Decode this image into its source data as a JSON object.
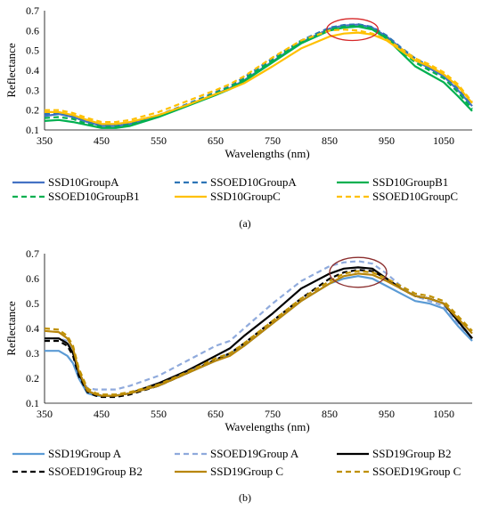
{
  "chart_data": [
    {
      "type": "line",
      "panel_label": "(a)",
      "xlabel": "Wavelengths (nm)",
      "ylabel": "Reflectance",
      "xlim": [
        350,
        1100
      ],
      "ylim": [
        0.1,
        0.7
      ],
      "xticks": [
        350,
        450,
        550,
        650,
        750,
        850,
        950,
        1050
      ],
      "yticks": [
        0.1,
        0.2,
        0.3,
        0.4,
        0.5,
        0.6,
        0.7
      ],
      "grid": false,
      "legend_position": "bottom",
      "annotation": {
        "shape": "ellipse",
        "color": "#d62728",
        "center": [
          890,
          0.605
        ],
        "rx_data": 45,
        "ry_data": 0.055
      },
      "series": [
        {
          "name": "SSD10GroupA",
          "color": "#4472c4",
          "dash": "solid",
          "x": [
            350,
            375,
            400,
            425,
            450,
            475,
            500,
            550,
            600,
            650,
            675,
            700,
            750,
            800,
            850,
            875,
            900,
            925,
            950,
            975,
            1000,
            1025,
            1050,
            1075,
            1100
          ],
          "y": [
            0.17,
            0.18,
            0.165,
            0.14,
            0.12,
            0.12,
            0.13,
            0.17,
            0.225,
            0.28,
            0.31,
            0.35,
            0.445,
            0.54,
            0.61,
            0.625,
            0.63,
            0.615,
            0.57,
            0.51,
            0.45,
            0.41,
            0.37,
            0.3,
            0.22
          ]
        },
        {
          "name": "SSOED10GroupA",
          "color": "#2e75b6",
          "dash": "dashed",
          "x": [
            350,
            375,
            400,
            425,
            450,
            475,
            500,
            550,
            600,
            650,
            675,
            700,
            750,
            800,
            850,
            875,
            900,
            925,
            950,
            975,
            1000,
            1025,
            1050,
            1075,
            1100
          ],
          "y": [
            0.18,
            0.185,
            0.17,
            0.145,
            0.125,
            0.125,
            0.135,
            0.175,
            0.23,
            0.29,
            0.32,
            0.365,
            0.46,
            0.55,
            0.615,
            0.628,
            0.632,
            0.618,
            0.575,
            0.515,
            0.46,
            0.42,
            0.38,
            0.31,
            0.225
          ]
        },
        {
          "name": "SSD10GroupB1",
          "color": "#00b050",
          "dash": "solid",
          "x": [
            350,
            375,
            400,
            425,
            450,
            475,
            500,
            550,
            600,
            650,
            675,
            700,
            750,
            800,
            850,
            875,
            900,
            925,
            950,
            975,
            1000,
            1025,
            1050,
            1075,
            1100
          ],
          "y": [
            0.145,
            0.15,
            0.14,
            0.125,
            0.11,
            0.11,
            0.12,
            0.165,
            0.22,
            0.275,
            0.305,
            0.345,
            0.44,
            0.535,
            0.6,
            0.615,
            0.62,
            0.605,
            0.56,
            0.49,
            0.42,
            0.38,
            0.34,
            0.27,
            0.195
          ]
        },
        {
          "name": "SSOED10GroupB1",
          "color": "#00b050",
          "dash": "dashed",
          "x": [
            350,
            375,
            400,
            425,
            450,
            475,
            500,
            550,
            600,
            650,
            675,
            700,
            750,
            800,
            850,
            875,
            900,
            925,
            950,
            975,
            1000,
            1025,
            1050,
            1075,
            1100
          ],
          "y": [
            0.16,
            0.165,
            0.155,
            0.13,
            0.115,
            0.115,
            0.125,
            0.17,
            0.225,
            0.285,
            0.315,
            0.355,
            0.45,
            0.545,
            0.605,
            0.62,
            0.625,
            0.61,
            0.565,
            0.5,
            0.44,
            0.4,
            0.36,
            0.29,
            0.205
          ]
        },
        {
          "name": "SSD10GroupC",
          "color": "#ffc000",
          "dash": "solid",
          "x": [
            350,
            375,
            400,
            425,
            450,
            475,
            500,
            550,
            600,
            650,
            675,
            700,
            750,
            800,
            850,
            875,
            900,
            925,
            950,
            975,
            1000,
            1025,
            1050,
            1075,
            1100
          ],
          "y": [
            0.19,
            0.19,
            0.175,
            0.15,
            0.13,
            0.13,
            0.14,
            0.175,
            0.225,
            0.28,
            0.305,
            0.335,
            0.42,
            0.51,
            0.57,
            0.585,
            0.59,
            0.58,
            0.55,
            0.5,
            0.45,
            0.42,
            0.38,
            0.32,
            0.235
          ]
        },
        {
          "name": "SSOED10GroupC",
          "color": "#ffc000",
          "dash": "dashed",
          "x": [
            350,
            375,
            400,
            425,
            450,
            475,
            500,
            550,
            600,
            650,
            675,
            700,
            750,
            800,
            850,
            875,
            900,
            925,
            950,
            975,
            1000,
            1025,
            1050,
            1075,
            1100
          ],
          "y": [
            0.2,
            0.2,
            0.185,
            0.16,
            0.14,
            0.14,
            0.15,
            0.19,
            0.245,
            0.3,
            0.33,
            0.37,
            0.465,
            0.55,
            0.6,
            0.605,
            0.6,
            0.585,
            0.555,
            0.51,
            0.46,
            0.43,
            0.39,
            0.33,
            0.24
          ]
        }
      ]
    },
    {
      "type": "line",
      "panel_label": "(b)",
      "xlabel": "Wavelengths (nm)",
      "ylabel": "Reflectance",
      "xlim": [
        350,
        1100
      ],
      "ylim": [
        0.1,
        0.7
      ],
      "xticks": [
        350,
        450,
        550,
        650,
        750,
        850,
        950,
        1050
      ],
      "yticks": [
        0.1,
        0.2,
        0.3,
        0.4,
        0.5,
        0.6,
        0.7
      ],
      "grid": false,
      "legend_position": "bottom",
      "annotation": {
        "shape": "ellipse",
        "color": "#8b2e2e",
        "center": [
          900,
          0.625
        ],
        "rx_data": 50,
        "ry_data": 0.06
      },
      "series": [
        {
          "name": "SSD19Group A",
          "color": "#5b9bd5",
          "dash": "solid",
          "x": [
            350,
            375,
            390,
            400,
            410,
            425,
            440,
            450,
            475,
            500,
            550,
            600,
            650,
            675,
            700,
            750,
            800,
            850,
            875,
            900,
            925,
            950,
            975,
            1000,
            1025,
            1050,
            1075,
            1100
          ],
          "y": [
            0.31,
            0.31,
            0.29,
            0.26,
            0.2,
            0.14,
            0.13,
            0.13,
            0.13,
            0.14,
            0.17,
            0.22,
            0.27,
            0.3,
            0.33,
            0.42,
            0.51,
            0.58,
            0.6,
            0.61,
            0.6,
            0.57,
            0.54,
            0.51,
            0.5,
            0.48,
            0.41,
            0.35
          ]
        },
        {
          "name": "SSOED19Group A",
          "color": "#8faadc",
          "dash": "dashed",
          "x": [
            350,
            375,
            390,
            400,
            410,
            425,
            440,
            450,
            475,
            500,
            550,
            600,
            650,
            675,
            700,
            750,
            800,
            850,
            875,
            900,
            925,
            950,
            975,
            1000,
            1025,
            1050,
            1075,
            1100
          ],
          "y": [
            0.36,
            0.36,
            0.35,
            0.3,
            0.22,
            0.16,
            0.155,
            0.155,
            0.155,
            0.17,
            0.21,
            0.27,
            0.33,
            0.35,
            0.4,
            0.5,
            0.59,
            0.65,
            0.665,
            0.67,
            0.66,
            0.62,
            0.57,
            0.53,
            0.51,
            0.49,
            0.42,
            0.36
          ]
        },
        {
          "name": "SSD19Group B2",
          "color": "#000000",
          "dash": "solid",
          "x": [
            350,
            375,
            390,
            400,
            410,
            425,
            440,
            450,
            475,
            500,
            550,
            600,
            650,
            675,
            700,
            750,
            800,
            850,
            875,
            900,
            925,
            950,
            975,
            1000,
            1025,
            1050,
            1075,
            1100
          ],
          "y": [
            0.36,
            0.36,
            0.34,
            0.3,
            0.22,
            0.15,
            0.135,
            0.13,
            0.13,
            0.14,
            0.18,
            0.23,
            0.29,
            0.32,
            0.37,
            0.46,
            0.56,
            0.62,
            0.64,
            0.645,
            0.64,
            0.6,
            0.56,
            0.53,
            0.52,
            0.5,
            0.43,
            0.36
          ]
        },
        {
          "name": "SSOED19Group B2",
          "color": "#000000",
          "dash": "dashed",
          "x": [
            350,
            375,
            390,
            400,
            410,
            425,
            440,
            450,
            475,
            500,
            550,
            600,
            650,
            675,
            700,
            750,
            800,
            850,
            875,
            900,
            925,
            950,
            975,
            1000,
            1025,
            1050,
            1075,
            1100
          ],
          "y": [
            0.35,
            0.35,
            0.33,
            0.29,
            0.21,
            0.145,
            0.13,
            0.125,
            0.125,
            0.135,
            0.17,
            0.22,
            0.275,
            0.3,
            0.34,
            0.43,
            0.52,
            0.6,
            0.625,
            0.635,
            0.63,
            0.6,
            0.56,
            0.53,
            0.52,
            0.5,
            0.43,
            0.36
          ]
        },
        {
          "name": "SSD19Group C",
          "color": "#b8860b",
          "dash": "solid",
          "x": [
            350,
            375,
            390,
            400,
            410,
            425,
            440,
            450,
            475,
            500,
            550,
            600,
            650,
            675,
            700,
            750,
            800,
            850,
            875,
            900,
            925,
            950,
            975,
            1000,
            1025,
            1050,
            1075,
            1100
          ],
          "y": [
            0.39,
            0.385,
            0.36,
            0.32,
            0.23,
            0.15,
            0.135,
            0.13,
            0.13,
            0.14,
            0.17,
            0.22,
            0.27,
            0.29,
            0.33,
            0.42,
            0.51,
            0.58,
            0.61,
            0.62,
            0.615,
            0.59,
            0.56,
            0.53,
            0.52,
            0.5,
            0.44,
            0.38
          ]
        },
        {
          "name": "SSOED19Group C",
          "color": "#bf9000",
          "dash": "dashed",
          "x": [
            350,
            375,
            390,
            400,
            410,
            425,
            440,
            450,
            475,
            500,
            550,
            600,
            650,
            675,
            700,
            750,
            800,
            850,
            875,
            900,
            925,
            950,
            975,
            1000,
            1025,
            1050,
            1075,
            1100
          ],
          "y": [
            0.4,
            0.395,
            0.37,
            0.33,
            0.24,
            0.16,
            0.14,
            0.135,
            0.135,
            0.145,
            0.175,
            0.225,
            0.28,
            0.3,
            0.34,
            0.43,
            0.52,
            0.59,
            0.62,
            0.63,
            0.625,
            0.6,
            0.57,
            0.54,
            0.53,
            0.51,
            0.45,
            0.39
          ]
        }
      ]
    }
  ]
}
